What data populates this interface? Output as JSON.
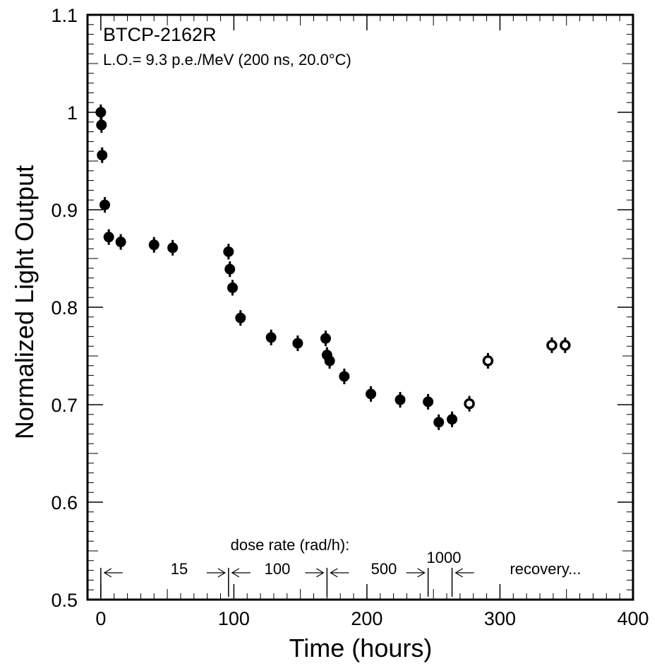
{
  "chart_data": {
    "type": "scatter",
    "title": "BTCP-2162R",
    "subtitle": "L.O.= 9.3 p.e./MeV (200 ns, 20.0°C)",
    "xlabel": "Time (hours)",
    "ylabel": "Normalized Light Output",
    "xlim": [
      -10,
      400
    ],
    "ylim": [
      0.5,
      1.1
    ],
    "xticks": [
      0,
      100,
      200,
      300,
      400
    ],
    "xtick_labels": [
      "0",
      "100",
      "200",
      "300",
      "400"
    ],
    "yticks": [
      0.5,
      0.6,
      0.7,
      0.8,
      0.9,
      1.0,
      1.1
    ],
    "ytick_labels": [
      "0.5",
      "0.6",
      "0.7",
      "0.8",
      "0.9",
      "1",
      "1.1"
    ],
    "grid": false,
    "series": [
      {
        "marker": "filled-circle",
        "x": [
          0,
          0.5,
          1,
          3,
          6,
          15,
          40,
          54,
          96,
          97,
          99,
          105,
          128,
          148,
          169,
          170,
          172,
          183,
          203,
          225,
          246,
          254,
          264
        ],
        "y": [
          1.0,
          0.987,
          0.956,
          0.905,
          0.872,
          0.867,
          0.864,
          0.861,
          0.857,
          0.839,
          0.82,
          0.789,
          0.769,
          0.763,
          0.768,
          0.751,
          0.745,
          0.729,
          0.711,
          0.705,
          0.703,
          0.682,
          0.685
        ],
        "yerr": 0.008
      },
      {
        "marker": "open-circle",
        "x": [
          277,
          291,
          339,
          349
        ],
        "y": [
          0.701,
          0.745,
          0.761,
          0.761
        ],
        "yerr": 0.008
      }
    ],
    "annotations": {
      "dose_rate_title": "dose rate (rad/h):",
      "phases": [
        {
          "label": "15",
          "start": 0,
          "end": 96
        },
        {
          "label": "100",
          "start": 96,
          "end": 170
        },
        {
          "label": "500",
          "start": 170,
          "end": 246
        },
        {
          "label": "1000",
          "start": 246,
          "end": 264
        },
        {
          "label": "recovery...",
          "start": 264,
          "end": null
        }
      ]
    }
  }
}
